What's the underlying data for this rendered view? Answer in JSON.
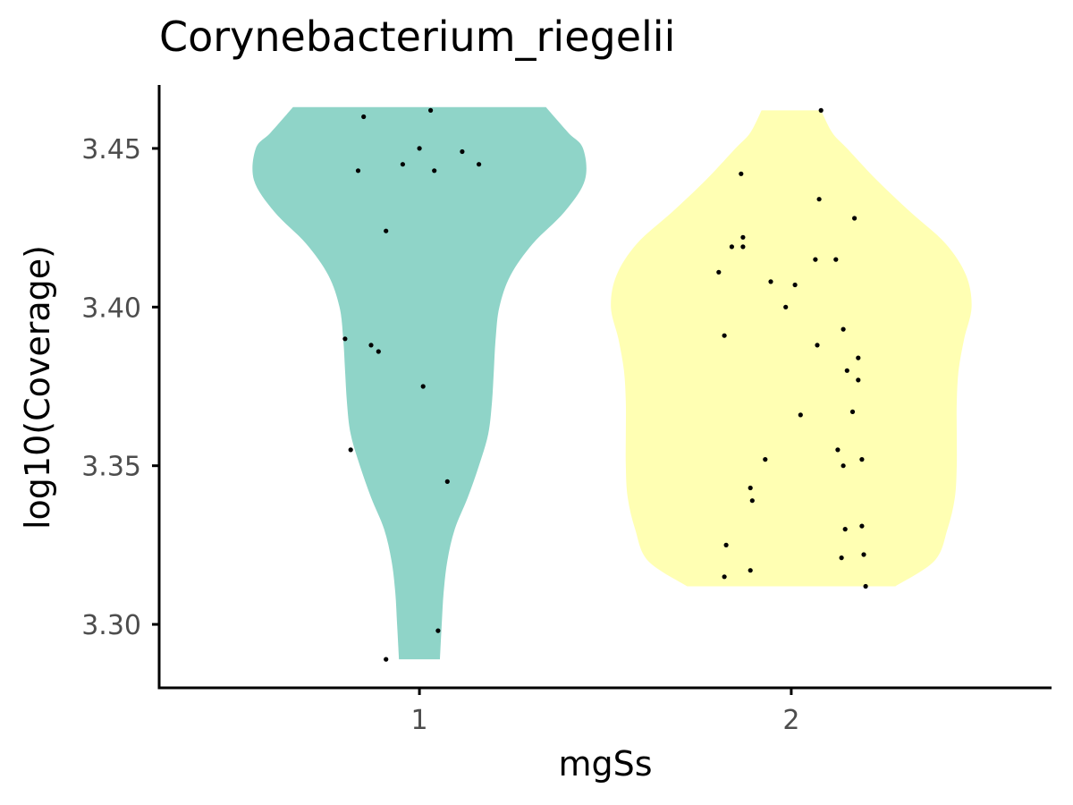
{
  "chart_data": {
    "type": "violin",
    "title": "Corynebacterium_riegelii",
    "xlabel": "mgSs",
    "ylabel": "log10(Coverage)",
    "categories": [
      "1",
      "2"
    ],
    "ylim": [
      3.28,
      3.47
    ],
    "yticks": [
      3.3,
      3.35,
      3.4,
      3.45
    ],
    "ytick_labels": [
      "3.30",
      "3.35",
      "3.40",
      "3.45"
    ],
    "grid": false,
    "legend": "none",
    "colors": {
      "1": "#8fd4c8",
      "2": "#ffffb3",
      "points": "#000000",
      "axis": "#000000",
      "tick_label": "#4d4d4d"
    },
    "violins": [
      {
        "category": "1",
        "profile": [
          [
            3.289,
            0.11
          ],
          [
            3.3,
            0.12
          ],
          [
            3.31,
            0.13
          ],
          [
            3.32,
            0.15
          ],
          [
            3.33,
            0.19
          ],
          [
            3.34,
            0.26
          ],
          [
            3.35,
            0.32
          ],
          [
            3.36,
            0.37
          ],
          [
            3.37,
            0.39
          ],
          [
            3.38,
            0.4
          ],
          [
            3.39,
            0.41
          ],
          [
            3.4,
            0.43
          ],
          [
            3.41,
            0.49
          ],
          [
            3.42,
            0.61
          ],
          [
            3.43,
            0.78
          ],
          [
            3.44,
            0.89
          ],
          [
            3.45,
            0.88
          ],
          [
            3.455,
            0.8
          ],
          [
            3.463,
            0.68
          ]
        ]
      },
      {
        "category": "2",
        "profile": [
          [
            3.312,
            0.56
          ],
          [
            3.32,
            0.77
          ],
          [
            3.33,
            0.84
          ],
          [
            3.34,
            0.88
          ],
          [
            3.35,
            0.89
          ],
          [
            3.36,
            0.89
          ],
          [
            3.37,
            0.89
          ],
          [
            3.38,
            0.9
          ],
          [
            3.39,
            0.93
          ],
          [
            3.4,
            0.97
          ],
          [
            3.41,
            0.94
          ],
          [
            3.42,
            0.83
          ],
          [
            3.43,
            0.64
          ],
          [
            3.44,
            0.46
          ],
          [
            3.45,
            0.3
          ],
          [
            3.455,
            0.22
          ],
          [
            3.462,
            0.16
          ]
        ]
      }
    ],
    "points": [
      {
        "category": "1",
        "values": [
          [
            -0.15,
            3.46
          ],
          [
            0.03,
            3.462
          ],
          [
            -0.165,
            3.443
          ],
          [
            -0.045,
            3.445
          ],
          [
            0.0,
            3.45
          ],
          [
            0.04,
            3.443
          ],
          [
            0.115,
            3.449
          ],
          [
            0.16,
            3.445
          ],
          [
            -0.09,
            3.424
          ],
          [
            -0.2,
            3.39
          ],
          [
            -0.13,
            3.388
          ],
          [
            -0.11,
            3.386
          ],
          [
            0.01,
            3.375
          ],
          [
            -0.185,
            3.355
          ],
          [
            0.075,
            3.345
          ],
          [
            0.05,
            3.298
          ],
          [
            -0.09,
            3.289
          ]
        ]
      },
      {
        "category": "2",
        "values": [
          [
            0.08,
            3.462
          ],
          [
            -0.135,
            3.442
          ],
          [
            0.075,
            3.434
          ],
          [
            0.17,
            3.428
          ],
          [
            -0.13,
            3.422
          ],
          [
            -0.13,
            3.419
          ],
          [
            -0.16,
            3.419
          ],
          [
            -0.195,
            3.411
          ],
          [
            0.065,
            3.415
          ],
          [
            0.12,
            3.415
          ],
          [
            -0.055,
            3.408
          ],
          [
            0.01,
            3.407
          ],
          [
            -0.015,
            3.4
          ],
          [
            -0.18,
            3.391
          ],
          [
            0.14,
            3.393
          ],
          [
            0.07,
            3.388
          ],
          [
            0.18,
            3.384
          ],
          [
            0.15,
            3.38
          ],
          [
            0.18,
            3.377
          ],
          [
            0.025,
            3.366
          ],
          [
            0.165,
            3.367
          ],
          [
            0.125,
            3.355
          ],
          [
            0.19,
            3.352
          ],
          [
            -0.07,
            3.352
          ],
          [
            0.14,
            3.35
          ],
          [
            -0.11,
            3.343
          ],
          [
            -0.105,
            3.339
          ],
          [
            0.19,
            3.331
          ],
          [
            0.145,
            3.33
          ],
          [
            -0.175,
            3.325
          ],
          [
            0.135,
            3.321
          ],
          [
            0.195,
            3.322
          ],
          [
            -0.11,
            3.317
          ],
          [
            -0.18,
            3.315
          ],
          [
            0.2,
            3.312
          ]
        ]
      }
    ]
  }
}
